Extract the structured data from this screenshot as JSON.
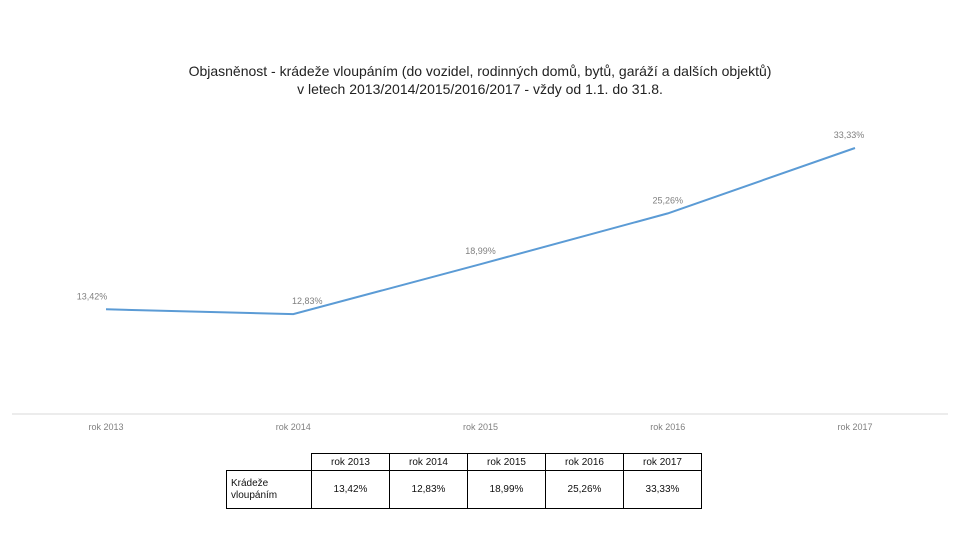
{
  "title_line1": "Objasněnost - krádeže vloupáním (do vozidel, rodinných domů, bytů, garáží a dalších objektů)",
  "title_line2": "v letech 2013/2014/2015/2016/2017 - vždy od 1.1. do 31.8.",
  "chart_data": {
    "type": "line",
    "categories": [
      "rok 2013",
      "rok 2014",
      "rok 2015",
      "rok 2016",
      "rok 2017"
    ],
    "series": [
      {
        "values": [
          13.42,
          12.83,
          18.99,
          25.26,
          33.33
        ]
      }
    ],
    "data_labels": [
      "13,42%",
      "12,83%",
      "18,99%",
      "25,26%",
      "33,33%"
    ],
    "line_color": "#5b9bd5",
    "grid": false
  },
  "table": {
    "headers": [
      "rok 2013",
      "rok 2014",
      "rok 2015",
      "rok 2016",
      "rok 2017"
    ],
    "row_label": "Krádeže vloupáním",
    "values": [
      "13,42%",
      "12,83%",
      "18,99%",
      "25,26%",
      "33,33%"
    ]
  }
}
